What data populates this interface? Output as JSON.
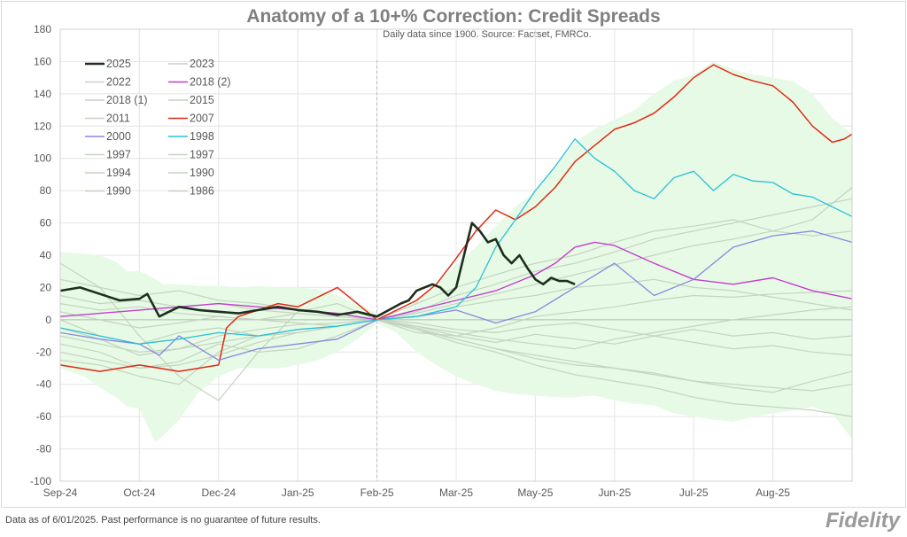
{
  "chart_data": {
    "type": "line",
    "title": "Anatomy of a 10+% Correction: Credit Spreads",
    "subtitle": "Daily data since 1900.  Source: Factset, FMRCo.",
    "xlabels": [
      "Sep-24",
      "Oct-24",
      "Dec-24",
      "Jan-25",
      "Feb-25",
      "Mar-25",
      "May-25",
      "Jun-25",
      "Jul-25",
      "Aug-25"
    ],
    "ylim": [
      -100,
      180
    ],
    "yticks": [
      -100,
      -80,
      -60,
      -40,
      -20,
      0,
      20,
      40,
      60,
      80,
      100,
      120,
      140,
      160,
      180
    ],
    "grid": true,
    "legend_position": "top-left",
    "band": {
      "color": "#e6fae6",
      "x": [
        0,
        6,
        10,
        14,
        17,
        20,
        22,
        24,
        26,
        30,
        35,
        40,
        45,
        50,
        55,
        60,
        65,
        70,
        75,
        80,
        85,
        90,
        95,
        100,
        105,
        110,
        115,
        120,
        125,
        130,
        135,
        140,
        145,
        150,
        155,
        160,
        165,
        170,
        175,
        180,
        185,
        190,
        195,
        200
      ],
      "upper": [
        42,
        41,
        40,
        36,
        30,
        30,
        28,
        25,
        22,
        22,
        21,
        21,
        20,
        21,
        20,
        20,
        19,
        15,
        10,
        4,
        2,
        12,
        22,
        34,
        45,
        58,
        70,
        80,
        95,
        110,
        118,
        124,
        130,
        140,
        148,
        152,
        160,
        155,
        152,
        150,
        148,
        140,
        125,
        115
      ],
      "lower": [
        -30,
        -35,
        -42,
        -48,
        -54,
        -55,
        -65,
        -76,
        -72,
        -62,
        -45,
        -35,
        -30,
        -30,
        -30,
        -28,
        -25,
        -20,
        -12,
        -2,
        -8,
        -20,
        -28,
        -35,
        -40,
        -44,
        -46,
        -47,
        -48,
        -48,
        -47,
        -50,
        -52,
        -53,
        -58,
        -60,
        -62,
        -63,
        -60,
        -58,
        -56,
        -54,
        -58,
        -74
      ]
    },
    "series": [
      {
        "name": "2025",
        "color": "#1e2e1e",
        "width": 2.6,
        "x": [
          0,
          5,
          10,
          15,
          20,
          22,
          25,
          30,
          35,
          40,
          45,
          50,
          55,
          60,
          65,
          70,
          75,
          80,
          83,
          86,
          88,
          90,
          92,
          94,
          96,
          98,
          100,
          102,
          104,
          106,
          108,
          110,
          112,
          114,
          116,
          118,
          120,
          122,
          124,
          126,
          128,
          130
        ],
        "y": [
          18,
          20,
          16,
          12,
          13,
          16,
          2,
          8,
          6,
          5,
          4,
          6,
          8,
          6,
          5,
          3,
          5,
          2,
          6,
          10,
          12,
          18,
          20,
          22,
          20,
          15,
          20,
          40,
          60,
          55,
          48,
          50,
          40,
          35,
          40,
          32,
          25,
          22,
          26,
          24,
          24,
          22
        ]
      },
      {
        "name": "2023",
        "color": "#c4d4c0",
        "width": 1.2,
        "x": [
          0,
          10,
          20,
          30,
          40,
          50,
          60,
          70,
          80,
          90,
          100,
          110,
          120,
          130,
          140,
          150,
          160,
          170,
          180,
          190,
          200
        ],
        "y": [
          -5,
          -12,
          -22,
          -18,
          -10,
          -6,
          -3,
          -2,
          0,
          -4,
          -10,
          -14,
          -9,
          -12,
          -15,
          -10,
          -6,
          -10,
          -8,
          -12,
          -10
        ]
      },
      {
        "name": "2022",
        "color": "#c4d4c0",
        "width": 1.2,
        "x": [
          0,
          10,
          20,
          30,
          40,
          50,
          60,
          70,
          80,
          90,
          100,
          110,
          120,
          130,
          140,
          150,
          160,
          170,
          180,
          190,
          200
        ],
        "y": [
          -20,
          -25,
          -30,
          -26,
          -15,
          -20,
          -18,
          -10,
          0,
          10,
          20,
          28,
          35,
          40,
          48,
          55,
          58,
          62,
          55,
          52,
          55
        ]
      },
      {
        "name": "2018 (2)",
        "color": "#c43ecc",
        "width": 1.4,
        "x": [
          0,
          10,
          20,
          30,
          40,
          50,
          60,
          70,
          80,
          90,
          100,
          110,
          120,
          125,
          130,
          135,
          140,
          150,
          160,
          170,
          180,
          190,
          200
        ],
        "y": [
          2,
          4,
          6,
          8,
          10,
          8,
          6,
          4,
          0,
          6,
          12,
          18,
          28,
          35,
          45,
          48,
          46,
          35,
          25,
          22,
          26,
          18,
          13
        ]
      },
      {
        "name": "2018 (1)",
        "color": "#c4d4c0",
        "width": 1.2,
        "x": [
          0,
          10,
          20,
          30,
          40,
          50,
          60,
          70,
          80,
          90,
          100,
          110,
          120,
          130,
          140,
          150,
          160,
          170,
          180,
          190,
          200
        ],
        "y": [
          10,
          6,
          8,
          4,
          2,
          0,
          4,
          2,
          0,
          2,
          8,
          12,
          15,
          20,
          22,
          25,
          20,
          18,
          14,
          10,
          6
        ]
      },
      {
        "name": "2015",
        "color": "#c4d4c0",
        "width": 1.2,
        "x": [
          0,
          10,
          20,
          30,
          40,
          50,
          60,
          70,
          80,
          90,
          100,
          110,
          120,
          130,
          140,
          150,
          160,
          170,
          180,
          190,
          200
        ],
        "y": [
          25,
          20,
          15,
          18,
          12,
          10,
          6,
          4,
          0,
          -5,
          -12,
          -18,
          -24,
          -28,
          -30,
          -33,
          -38,
          -42,
          -45,
          -38,
          -32
        ]
      },
      {
        "name": "2011",
        "color": "#c4d4c0",
        "width": 1.2,
        "x": [
          0,
          10,
          20,
          30,
          40,
          50,
          60,
          70,
          80,
          90,
          100,
          110,
          120,
          130,
          140,
          150,
          160,
          170,
          180,
          190,
          200
        ],
        "y": [
          0,
          -10,
          -15,
          -8,
          -5,
          -10,
          -6,
          -4,
          0,
          5,
          15,
          22,
          30,
          35,
          42,
          50,
          55,
          60,
          65,
          70,
          75
        ]
      },
      {
        "name": "2007",
        "color": "#e02a14",
        "width": 1.5,
        "x": [
          0,
          5,
          10,
          15,
          20,
          25,
          30,
          35,
          40,
          42,
          45,
          50,
          55,
          60,
          65,
          70,
          75,
          80,
          85,
          90,
          95,
          100,
          105,
          110,
          115,
          120,
          125,
          130,
          135,
          140,
          145,
          150,
          155,
          160,
          165,
          170,
          175,
          180,
          185,
          190,
          195,
          198,
          200
        ],
        "y": [
          -28,
          -30,
          -32,
          -30,
          -28,
          -30,
          -32,
          -30,
          -28,
          -5,
          2,
          6,
          10,
          8,
          14,
          20,
          10,
          0,
          6,
          12,
          22,
          38,
          55,
          68,
          62,
          70,
          82,
          98,
          108,
          118,
          122,
          128,
          138,
          150,
          158,
          152,
          148,
          145,
          135,
          120,
          110,
          112,
          115
        ]
      },
      {
        "name": "2000",
        "color": "#8c86e0",
        "width": 1.3,
        "x": [
          0,
          10,
          20,
          25,
          30,
          40,
          50,
          60,
          70,
          80,
          90,
          100,
          110,
          120,
          130,
          140,
          150,
          160,
          170,
          180,
          190,
          200
        ],
        "y": [
          -8,
          -12,
          -15,
          -22,
          -10,
          -25,
          -18,
          -15,
          -12,
          0,
          2,
          6,
          -2,
          5,
          20,
          35,
          15,
          25,
          45,
          52,
          55,
          48
        ]
      },
      {
        "name": "1998",
        "color": "#28c0d8",
        "width": 1.3,
        "x": [
          0,
          10,
          20,
          30,
          40,
          50,
          60,
          70,
          80,
          90,
          95,
          100,
          105,
          110,
          115,
          120,
          125,
          130,
          135,
          140,
          145,
          150,
          155,
          160,
          165,
          170,
          175,
          180,
          185,
          190,
          195,
          200
        ],
        "y": [
          -5,
          -10,
          -15,
          -12,
          -8,
          -10,
          -6,
          -4,
          0,
          2,
          5,
          8,
          20,
          45,
          62,
          80,
          95,
          112,
          100,
          92,
          80,
          75,
          88,
          92,
          80,
          90,
          86,
          85,
          78,
          76,
          70,
          64
        ]
      },
      {
        "name": "1997",
        "color": "#c4d4c0",
        "width": 1.2,
        "x": [
          0,
          10,
          20,
          30,
          40,
          50,
          60,
          70,
          80,
          90,
          100,
          110,
          120,
          130,
          140,
          150,
          160,
          170,
          180,
          190,
          200
        ],
        "y": [
          35,
          20,
          -10,
          -35,
          -50,
          -20,
          5,
          10,
          0,
          -8,
          -10,
          -5,
          2,
          5,
          8,
          12,
          15,
          14,
          16,
          17,
          18
        ]
      },
      {
        "name": "1997",
        "color": "#c4d4c0",
        "width": 1.2,
        "x": [
          0,
          10,
          20,
          30,
          40,
          50,
          60,
          70,
          80,
          90,
          100,
          110,
          120,
          130,
          140,
          150,
          160,
          170,
          180,
          190,
          200
        ],
        "y": [
          15,
          10,
          12,
          8,
          10,
          6,
          4,
          2,
          0,
          -6,
          -14,
          -20,
          -28,
          -34,
          -38,
          -42,
          -48,
          -52,
          -54,
          -56,
          -60
        ]
      },
      {
        "name": "1994",
        "color": "#c4d4c0",
        "width": 1.2,
        "x": [
          0,
          10,
          20,
          30,
          40,
          50,
          60,
          70,
          80,
          90,
          100,
          110,
          120,
          130,
          140,
          150,
          160,
          170,
          180,
          190,
          200
        ],
        "y": [
          -10,
          -15,
          -20,
          -18,
          -14,
          -10,
          -8,
          -4,
          0,
          4,
          10,
          16,
          22,
          28,
          34,
          40,
          46,
          50,
          55,
          62,
          82
        ]
      },
      {
        "name": "1990",
        "color": "#c4d4c0",
        "width": 1.2,
        "x": [
          0,
          10,
          20,
          30,
          40,
          50,
          60,
          70,
          80,
          90,
          100,
          110,
          120,
          130,
          140,
          150,
          160,
          170,
          180,
          190,
          200
        ],
        "y": [
          5,
          0,
          -5,
          -2,
          2,
          0,
          -2,
          -4,
          0,
          -4,
          -8,
          -12,
          -15,
          -18,
          -12,
          -8,
          -4,
          0,
          3,
          6,
          8
        ]
      },
      {
        "name": "1990",
        "color": "#c4d4c0",
        "width": 1.2,
        "x": [
          0,
          10,
          20,
          30,
          40,
          50,
          60,
          70,
          80,
          90,
          100,
          110,
          120,
          130,
          140,
          150,
          160,
          170,
          180,
          190,
          200
        ],
        "y": [
          -15,
          -20,
          -30,
          -28,
          -22,
          -14,
          -8,
          -4,
          0,
          -6,
          -12,
          -18,
          -22,
          -26,
          -30,
          -34,
          -38,
          -40,
          -42,
          -44,
          -40
        ]
      },
      {
        "name": "1986",
        "color": "#c4d4c0",
        "width": 1.2,
        "x": [
          0,
          10,
          20,
          30,
          40,
          50,
          60,
          70,
          80,
          90,
          100,
          110,
          120,
          130,
          140,
          150,
          160,
          170,
          180,
          190,
          200
        ],
        "y": [
          -25,
          -28,
          -35,
          -40,
          -20,
          -10,
          -8,
          -4,
          0,
          -2,
          -6,
          -8,
          -4,
          -2,
          -6,
          -10,
          -14,
          -18,
          -16,
          -20,
          -22
        ]
      }
    ]
  },
  "footer": {
    "disclaimer": "Data as of 6/01/2025. Past performance is no guarantee of future results.",
    "brand": "Fidelity"
  }
}
